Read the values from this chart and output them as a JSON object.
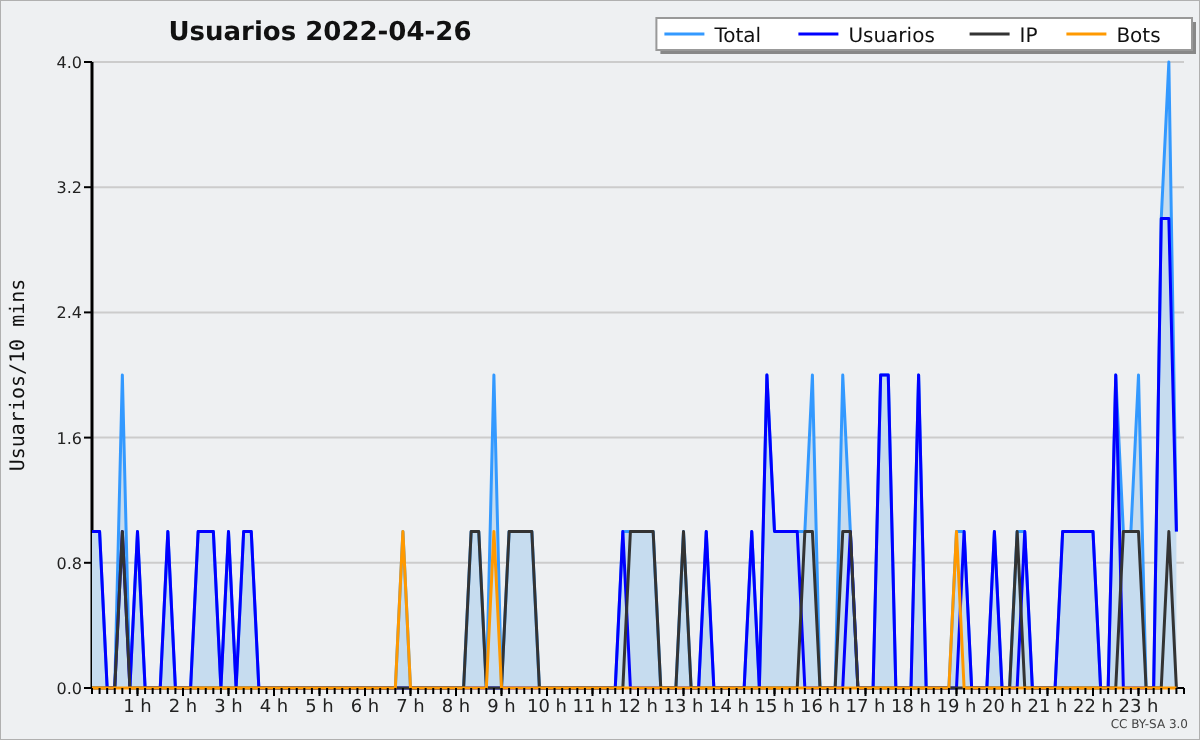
{
  "chart_data": {
    "type": "line",
    "title": "Usuarios  2022-04-26",
    "ylabel": "Usuarios/10 mins",
    "annotations": [
      "CC BY-SA 3.0"
    ],
    "x": [
      0,
      0.167,
      0.333,
      0.5,
      0.667,
      0.833,
      1,
      1.167,
      1.333,
      1.5,
      1.667,
      1.833,
      2,
      2.167,
      2.333,
      2.5,
      2.667,
      2.833,
      3,
      3.167,
      3.333,
      3.5,
      3.667,
      3.833,
      4,
      4.167,
      4.333,
      4.5,
      4.667,
      4.833,
      5,
      5.167,
      5.333,
      5.5,
      5.667,
      5.833,
      6,
      6.167,
      6.333,
      6.5,
      6.667,
      6.833,
      7,
      7.167,
      7.333,
      7.5,
      7.667,
      7.833,
      8,
      8.167,
      8.333,
      8.5,
      8.667,
      8.833,
      9,
      9.167,
      9.333,
      9.5,
      9.667,
      9.833,
      10,
      10.167,
      10.333,
      10.5,
      10.667,
      10.833,
      11,
      11.167,
      11.333,
      11.5,
      11.667,
      11.833,
      12,
      12.167,
      12.333,
      12.5,
      12.667,
      12.833,
      13,
      13.167,
      13.333,
      13.5,
      13.667,
      13.833,
      14,
      14.167,
      14.333,
      14.5,
      14.667,
      14.833,
      15,
      15.167,
      15.333,
      15.5,
      15.667,
      15.833,
      16,
      16.167,
      16.333,
      16.5,
      16.667,
      16.833,
      17,
      17.167,
      17.333,
      17.5,
      17.667,
      17.833,
      18,
      18.167,
      18.333,
      18.5,
      18.667,
      18.833,
      19,
      19.167,
      19.333,
      19.5,
      19.667,
      19.833,
      20,
      20.167,
      20.333,
      20.5,
      20.667,
      20.833,
      21,
      21.167,
      21.333,
      21.5,
      21.667,
      21.833,
      22,
      22.167,
      22.333,
      22.5,
      22.667,
      22.833,
      23,
      23.167,
      23.333,
      23.5,
      23.667,
      23.833
    ],
    "series": [
      {
        "name": "Total",
        "type": "area",
        "color": "#3399ff",
        "values": [
          1,
          1,
          0,
          0,
          2,
          0,
          1,
          0,
          0,
          0,
          1,
          0,
          0,
          0,
          1,
          1,
          1,
          0,
          1,
          0,
          1,
          1,
          0,
          0,
          0,
          0,
          0,
          0,
          0,
          0,
          0,
          0,
          0,
          0,
          0,
          0,
          0,
          0,
          0,
          0,
          0,
          1,
          0,
          0,
          0,
          0,
          0,
          0,
          0,
          0,
          1,
          1,
          0,
          2,
          0,
          1,
          1,
          1,
          1,
          0,
          0,
          0,
          0,
          0,
          0,
          0,
          0,
          0,
          0,
          0,
          1,
          1,
          1,
          1,
          1,
          0,
          0,
          0,
          1,
          0,
          0,
          1,
          0,
          0,
          0,
          0,
          0,
          1,
          0,
          2,
          1,
          1,
          1,
          1,
          1,
          2,
          0,
          0,
          0,
          2,
          1,
          0,
          0,
          0,
          2,
          2,
          0,
          0,
          0,
          2,
          0,
          0,
          0,
          0,
          1,
          1,
          0,
          0,
          0,
          1,
          0,
          0,
          1,
          1,
          0,
          0,
          0,
          0,
          1,
          1,
          1,
          1,
          1,
          0,
          0,
          2,
          1,
          1,
          2,
          0,
          0,
          3,
          4,
          1
        ]
      },
      {
        "name": "Usuarios",
        "color": "#0000ff",
        "values": [
          1,
          1,
          0,
          0,
          1,
          0,
          1,
          0,
          0,
          0,
          1,
          0,
          0,
          0,
          1,
          1,
          1,
          0,
          1,
          0,
          1,
          1,
          0,
          0,
          0,
          0,
          0,
          0,
          0,
          0,
          0,
          0,
          0,
          0,
          0,
          0,
          0,
          0,
          0,
          0,
          0,
          0,
          0,
          0,
          0,
          0,
          0,
          0,
          0,
          0,
          0,
          0,
          0,
          0,
          0,
          0,
          0,
          0,
          0,
          0,
          0,
          0,
          0,
          0,
          0,
          0,
          0,
          0,
          0,
          0,
          1,
          0,
          0,
          0,
          0,
          0,
          0,
          0,
          0,
          0,
          0,
          1,
          0,
          0,
          0,
          0,
          0,
          1,
          0,
          2,
          1,
          1,
          1,
          1,
          0,
          0,
          0,
          0,
          0,
          0,
          1,
          0,
          0,
          0,
          2,
          2,
          0,
          0,
          0,
          2,
          0,
          0,
          0,
          0,
          0,
          1,
          0,
          0,
          0,
          1,
          0,
          0,
          0,
          1,
          0,
          0,
          0,
          0,
          1,
          1,
          1,
          1,
          1,
          0,
          0,
          2,
          0,
          0,
          0,
          0,
          0,
          3,
          3,
          1
        ]
      },
      {
        "name": "IP",
        "color": "#333333",
        "values": [
          0,
          0,
          0,
          0,
          1,
          0,
          0,
          0,
          0,
          0,
          0,
          0,
          0,
          0,
          0,
          0,
          0,
          0,
          0,
          0,
          0,
          0,
          0,
          0,
          0,
          0,
          0,
          0,
          0,
          0,
          0,
          0,
          0,
          0,
          0,
          0,
          0,
          0,
          0,
          0,
          0,
          0,
          0,
          0,
          0,
          0,
          0,
          0,
          0,
          0,
          1,
          1,
          0,
          0,
          0,
          1,
          1,
          1,
          1,
          0,
          0,
          0,
          0,
          0,
          0,
          0,
          0,
          0,
          0,
          0,
          0,
          1,
          1,
          1,
          1,
          0,
          0,
          0,
          1,
          0,
          0,
          0,
          0,
          0,
          0,
          0,
          0,
          0,
          0,
          0,
          0,
          0,
          0,
          0,
          1,
          1,
          0,
          0,
          0,
          1,
          1,
          0,
          0,
          0,
          0,
          0,
          0,
          0,
          0,
          0,
          0,
          0,
          0,
          0,
          0,
          0,
          0,
          0,
          0,
          0,
          0,
          0,
          1,
          0,
          0,
          0,
          0,
          0,
          0,
          0,
          0,
          0,
          0,
          0,
          0,
          0,
          1,
          1,
          1,
          0,
          0,
          0,
          1,
          0
        ]
      },
      {
        "name": "Bots",
        "color": "#ff9900",
        "values": [
          0,
          0,
          0,
          0,
          0,
          0,
          0,
          0,
          0,
          0,
          0,
          0,
          0,
          0,
          0,
          0,
          0,
          0,
          0,
          0,
          0,
          0,
          0,
          0,
          0,
          0,
          0,
          0,
          0,
          0,
          0,
          0,
          0,
          0,
          0,
          0,
          0,
          0,
          0,
          0,
          0,
          1,
          0,
          0,
          0,
          0,
          0,
          0,
          0,
          0,
          0,
          0,
          0,
          1,
          0,
          0,
          0,
          0,
          0,
          0,
          0,
          0,
          0,
          0,
          0,
          0,
          0,
          0,
          0,
          0,
          0,
          0,
          0,
          0,
          0,
          0,
          0,
          0,
          0,
          0,
          0,
          0,
          0,
          0,
          0,
          0,
          0,
          0,
          0,
          0,
          0,
          0,
          0,
          0,
          0,
          0,
          0,
          0,
          0,
          0,
          0,
          0,
          0,
          0,
          0,
          0,
          0,
          0,
          0,
          0,
          0,
          0,
          0,
          0,
          1,
          0,
          0,
          0,
          0,
          0,
          0,
          0,
          0,
          0,
          0,
          0,
          0,
          0,
          0,
          0,
          0,
          0,
          0,
          0,
          0,
          0,
          0,
          0,
          0,
          0,
          0,
          0,
          0,
          0
        ]
      }
    ],
    "xlim": [
      0,
      24
    ],
    "xticks": [
      {
        "value": 1,
        "label": "1 h"
      },
      {
        "value": 2,
        "label": "2 h"
      },
      {
        "value": 3,
        "label": "3 h"
      },
      {
        "value": 4,
        "label": "4 h"
      },
      {
        "value": 5,
        "label": "5 h"
      },
      {
        "value": 6,
        "label": "6 h"
      },
      {
        "value": 7,
        "label": "7 h"
      },
      {
        "value": 8,
        "label": "8 h"
      },
      {
        "value": 9,
        "label": "9 h"
      },
      {
        "value": 10,
        "label": "10 h"
      },
      {
        "value": 11,
        "label": "11 h"
      },
      {
        "value": 12,
        "label": "12 h"
      },
      {
        "value": 13,
        "label": "13 h"
      },
      {
        "value": 14,
        "label": "14 h"
      },
      {
        "value": 15,
        "label": "15 h"
      },
      {
        "value": 16,
        "label": "16 h"
      },
      {
        "value": 17,
        "label": "17 h"
      },
      {
        "value": 18,
        "label": "18 h"
      },
      {
        "value": 19,
        "label": "19 h"
      },
      {
        "value": 20,
        "label": "20 h"
      },
      {
        "value": 21,
        "label": "21 h"
      },
      {
        "value": 22,
        "label": "22 h"
      },
      {
        "value": 23,
        "label": "23 h"
      }
    ],
    "ylim": [
      0,
      4
    ],
    "yticks": [
      {
        "value": 0,
        "label": "0.0"
      },
      0.8,
      1.6,
      2.4,
      3.2,
      {
        "value": 4,
        "label": "4.0"
      }
    ],
    "grid": "y",
    "legend": "top right"
  }
}
